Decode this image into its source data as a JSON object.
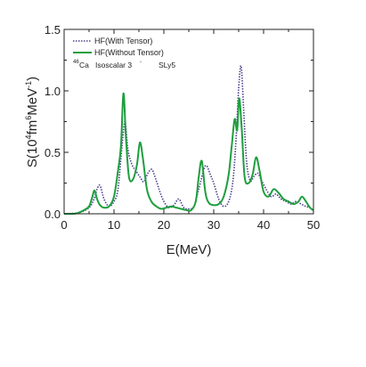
{
  "chart_data": {
    "type": "line",
    "xlabel": "E(MeV)",
    "ylabel": {
      "prefix": "S(10",
      "exp1": "4",
      "mid1": "fm",
      "exp2": "6",
      "mid2": "MeV",
      "exp3": "-1",
      "suffix": ")"
    },
    "xlim": [
      0,
      50
    ],
    "ylim": [
      0,
      1.5
    ],
    "xticks": [
      0,
      10,
      20,
      30,
      40,
      50
    ],
    "yticks": [
      0.0,
      0.5,
      1.0,
      1.5
    ],
    "ytick_labels": [
      "0.0",
      "0.5",
      "1.0",
      "1.5"
    ],
    "legend_position": "top-left",
    "annotation": {
      "nucleus_mass": "46",
      "nucleus": "Ca",
      "text": "Isoscalar 3",
      "superscript": "-",
      "force": "SLy5"
    },
    "colors": {
      "with_tensor": "#4a3f8c",
      "without_tensor": "#1e9e3e"
    },
    "series": [
      {
        "name": "HF(With Tensor)",
        "style": "dotted",
        "x": [
          0,
          3,
          5,
          6,
          6.6,
          7.2,
          8,
          9,
          10,
          10.8,
          11.6,
          12.2,
          12.8,
          13.6,
          14.4,
          15.2,
          16.0,
          16.8,
          17.6,
          18.4,
          19.2,
          20.0,
          21.0,
          22.0,
          23.0,
          24.0,
          25.0,
          26.0,
          27.0,
          28.0,
          28.6,
          29.3,
          30.0,
          31.0,
          32.0,
          33.0,
          33.8,
          34.4,
          35.0,
          35.5,
          36.0,
          36.6,
          37.3,
          38.0,
          38.8,
          39.6,
          40.5,
          41.5,
          42.5,
          43.5,
          44.5,
          45.5,
          46.5,
          47.5,
          48.5,
          49.3,
          50.0
        ],
        "y": [
          0.0,
          0.01,
          0.05,
          0.12,
          0.2,
          0.23,
          0.12,
          0.06,
          0.1,
          0.2,
          0.55,
          0.75,
          0.52,
          0.4,
          0.35,
          0.3,
          0.26,
          0.33,
          0.36,
          0.28,
          0.18,
          0.1,
          0.05,
          0.07,
          0.12,
          0.05,
          0.04,
          0.06,
          0.2,
          0.36,
          0.39,
          0.32,
          0.25,
          0.12,
          0.06,
          0.1,
          0.25,
          0.55,
          1.02,
          1.2,
          0.85,
          0.42,
          0.27,
          0.3,
          0.33,
          0.27,
          0.2,
          0.14,
          0.16,
          0.12,
          0.1,
          0.08,
          0.1,
          0.08,
          0.06,
          0.05,
          0.02
        ]
      },
      {
        "name": "HF(Without Tensor)",
        "style": "solid",
        "x": [
          0,
          2,
          3,
          4,
          5,
          5.6,
          6.1,
          6.6,
          7.2,
          8,
          9,
          10,
          10.8,
          11.4,
          11.9,
          12.4,
          13.0,
          13.8,
          14.6,
          15.2,
          15.8,
          16.6,
          17.5,
          18.5,
          19.5,
          20.5,
          21.5,
          22.5,
          23.5,
          24.5,
          25.5,
          26.4,
          27.0,
          27.6,
          28.3,
          29.0,
          30.0,
          31.0,
          32.0,
          33.0,
          33.6,
          34.2,
          34.7,
          35.1,
          35.6,
          36.2,
          37.0,
          37.8,
          38.5,
          39.2,
          40.0,
          41.0,
          42.0,
          43.0,
          44.0,
          45.0,
          46.0,
          47.0,
          47.7,
          48.5,
          49.3,
          50.0
        ],
        "y": [
          0.0,
          0.0,
          0.01,
          0.03,
          0.06,
          0.13,
          0.19,
          0.12,
          0.07,
          0.05,
          0.06,
          0.14,
          0.35,
          0.55,
          0.98,
          0.62,
          0.3,
          0.28,
          0.4,
          0.58,
          0.45,
          0.2,
          0.1,
          0.06,
          0.04,
          0.05,
          0.06,
          0.05,
          0.04,
          0.03,
          0.03,
          0.1,
          0.3,
          0.43,
          0.18,
          0.09,
          0.07,
          0.08,
          0.14,
          0.32,
          0.55,
          0.77,
          0.68,
          0.94,
          0.7,
          0.3,
          0.25,
          0.32,
          0.46,
          0.35,
          0.18,
          0.14,
          0.2,
          0.17,
          0.12,
          0.1,
          0.08,
          0.1,
          0.14,
          0.1,
          0.05,
          0.03
        ]
      }
    ]
  }
}
